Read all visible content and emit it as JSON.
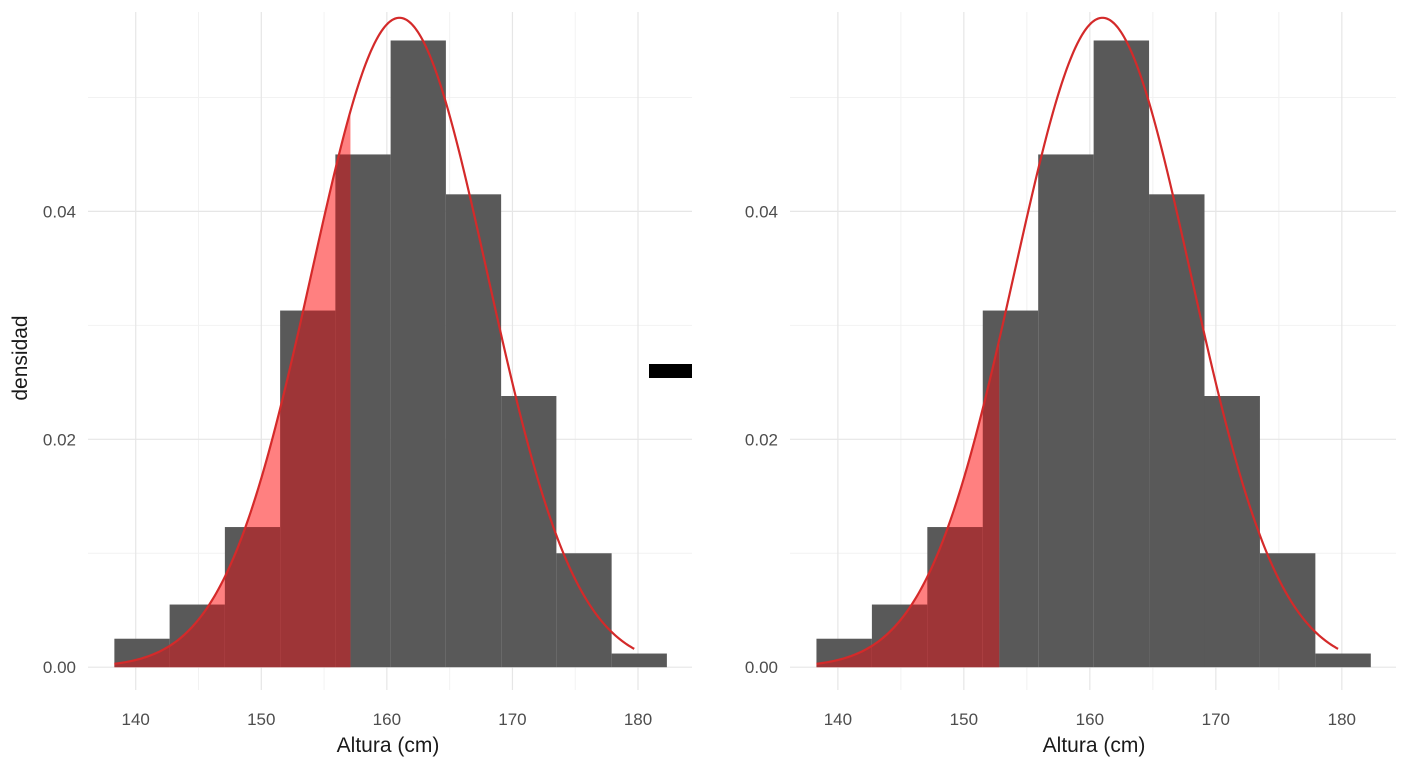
{
  "separator_symbol": "minus",
  "colors": {
    "bar": "#595959",
    "curve": "#d42a2a",
    "shade_fill": "#ff8080",
    "shade_overlap": "#9e3537",
    "grid_major": "#e6e6e6",
    "grid_minor": "#f2f2f2"
  },
  "chart_data": [
    {
      "type": "bar",
      "xlabel": "Altura (cm)",
      "ylabel": "densidad",
      "xlim": [
        136.2,
        184.3
      ],
      "ylim": [
        -0.002,
        0.0575
      ],
      "x_ticks": [
        140,
        150,
        160,
        170,
        180
      ],
      "y_ticks": [
        0.0,
        0.02,
        0.04
      ],
      "x_tick_labels": [
        "140",
        "150",
        "160",
        "170",
        "180"
      ],
      "y_tick_labels": [
        "0.00",
        "0.02",
        "0.04"
      ],
      "grid": true,
      "bins": {
        "edges": [
          138.3,
          142.7,
          147.1,
          151.5,
          155.9,
          160.3,
          164.7,
          169.1,
          173.5,
          177.9,
          182.3
        ],
        "values": [
          0.0025,
          0.0055,
          0.0123,
          0.0313,
          0.045,
          0.055,
          0.0415,
          0.0238,
          0.01,
          0.0012
        ]
      },
      "density_curve": {
        "type": "normal",
        "mean": 161,
        "sd": 7,
        "x_range": [
          138.3,
          179.7
        ]
      },
      "shaded_region": {
        "x_from": 138.3,
        "x_to": 157.1
      }
    },
    {
      "type": "bar",
      "xlabel": "Altura (cm)",
      "ylabel": "densidad",
      "xlim": [
        136.2,
        184.3
      ],
      "ylim": [
        -0.002,
        0.0575
      ],
      "x_ticks": [
        140,
        150,
        160,
        170,
        180
      ],
      "y_ticks": [
        0.0,
        0.02,
        0.04
      ],
      "x_tick_labels": [
        "140",
        "150",
        "160",
        "170",
        "180"
      ],
      "y_tick_labels": [
        "0.00",
        "0.02",
        "0.04"
      ],
      "grid": true,
      "bins": {
        "edges": [
          138.3,
          142.7,
          147.1,
          151.5,
          155.9,
          160.3,
          164.7,
          169.1,
          173.5,
          177.9,
          182.3
        ],
        "values": [
          0.0025,
          0.0055,
          0.0123,
          0.0313,
          0.045,
          0.055,
          0.0415,
          0.0238,
          0.01,
          0.0012
        ]
      },
      "density_curve": {
        "type": "normal",
        "mean": 161,
        "sd": 7,
        "x_range": [
          138.3,
          179.7
        ]
      },
      "shaded_region": {
        "x_from": 138.3,
        "x_to": 152.8
      }
    }
  ]
}
